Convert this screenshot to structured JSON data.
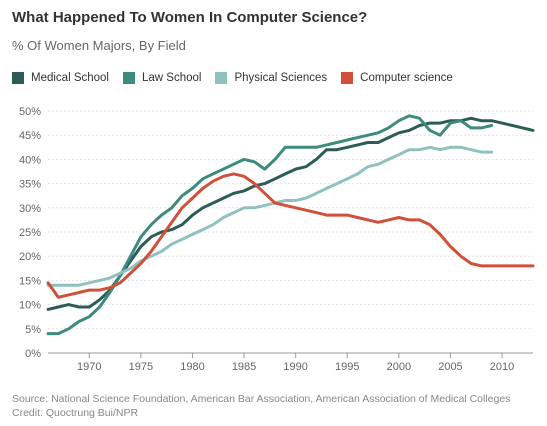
{
  "title": "What Happened To Women In Computer Science?",
  "subtitle": "% Of Women Majors, By Field",
  "footer": {
    "source": "Source: National Science Foundation, American Bar Association, American Association of Medical Colleges",
    "credit": "Credit: Quoctrung Bui/NPR"
  },
  "chart_data": {
    "type": "line",
    "title": "What Happened To Women In Computer Science?",
    "subtitle": "% Of Women Majors, By Field",
    "xlabel": "",
    "ylabel": "",
    "xlim": [
      1966,
      2013
    ],
    "ylim": [
      0,
      50
    ],
    "x_ticks": [
      1970,
      1975,
      1980,
      1985,
      1990,
      1995,
      2000,
      2005,
      2010
    ],
    "y_ticks": [
      "0%",
      "5%",
      "10%",
      "15%",
      "20%",
      "25%",
      "30%",
      "35%",
      "40%",
      "45%",
      "50%"
    ],
    "grid": true,
    "legend_position": "top-left",
    "series": [
      {
        "name": "Medical School",
        "color": "#2b5c55",
        "points": [
          [
            1966,
            9
          ],
          [
            1967,
            9.5
          ],
          [
            1968,
            10
          ],
          [
            1969,
            9.5
          ],
          [
            1970,
            9.5
          ],
          [
            1971,
            11
          ],
          [
            1972,
            13
          ],
          [
            1973,
            16
          ],
          [
            1974,
            19
          ],
          [
            1975,
            22
          ],
          [
            1976,
            24
          ],
          [
            1977,
            25
          ],
          [
            1978,
            25.5
          ],
          [
            1979,
            26.5
          ],
          [
            1980,
            28.5
          ],
          [
            1981,
            30
          ],
          [
            1982,
            31
          ],
          [
            1983,
            32
          ],
          [
            1984,
            33
          ],
          [
            1985,
            33.5
          ],
          [
            1986,
            34.5
          ],
          [
            1987,
            35
          ],
          [
            1988,
            36
          ],
          [
            1989,
            37
          ],
          [
            1990,
            38
          ],
          [
            1991,
            38.5
          ],
          [
            1992,
            40
          ],
          [
            1993,
            42
          ],
          [
            1994,
            42
          ],
          [
            1995,
            42.5
          ],
          [
            1996,
            43
          ],
          [
            1997,
            43.5
          ],
          [
            1998,
            43.5
          ],
          [
            1999,
            44.5
          ],
          [
            2000,
            45.5
          ],
          [
            2001,
            46
          ],
          [
            2002,
            47
          ],
          [
            2003,
            47.5
          ],
          [
            2004,
            47.5
          ],
          [
            2005,
            48
          ],
          [
            2006,
            48
          ],
          [
            2007,
            48.5
          ],
          [
            2008,
            48
          ],
          [
            2009,
            48
          ],
          [
            2010,
            47.5
          ],
          [
            2011,
            47
          ],
          [
            2012,
            46.5
          ],
          [
            2013,
            46
          ]
        ]
      },
      {
        "name": "Law School",
        "color": "#3d8a7f",
        "points": [
          [
            1966,
            4
          ],
          [
            1967,
            4
          ],
          [
            1968,
            5
          ],
          [
            1969,
            6.5
          ],
          [
            1970,
            7.5
          ],
          [
            1971,
            9.5
          ],
          [
            1972,
            12.5
          ],
          [
            1973,
            16
          ],
          [
            1974,
            20
          ],
          [
            1975,
            24
          ],
          [
            1976,
            26.5
          ],
          [
            1977,
            28.5
          ],
          [
            1978,
            30
          ],
          [
            1979,
            32.5
          ],
          [
            1980,
            34
          ],
          [
            1981,
            36
          ],
          [
            1982,
            37
          ],
          [
            1983,
            38
          ],
          [
            1984,
            39
          ],
          [
            1985,
            40
          ],
          [
            1986,
            39.5
          ],
          [
            1987,
            38
          ],
          [
            1988,
            40
          ],
          [
            1989,
            42.5
          ],
          [
            1990,
            42.5
          ],
          [
            1991,
            42.5
          ],
          [
            1992,
            42.5
          ],
          [
            1993,
            43
          ],
          [
            1994,
            43.5
          ],
          [
            1995,
            44
          ],
          [
            1996,
            44.5
          ],
          [
            1997,
            45
          ],
          [
            1998,
            45.5
          ],
          [
            1999,
            46.5
          ],
          [
            2000,
            48
          ],
          [
            2001,
            49
          ],
          [
            2002,
            48.5
          ],
          [
            2003,
            46
          ],
          [
            2004,
            45
          ],
          [
            2005,
            47.5
          ],
          [
            2006,
            48
          ],
          [
            2007,
            46.5
          ],
          [
            2008,
            46.5
          ],
          [
            2009,
            47
          ]
        ]
      },
      {
        "name": "Physical Sciences",
        "color": "#8fc2bf",
        "points": [
          [
            1966,
            14
          ],
          [
            1967,
            14
          ],
          [
            1968,
            14
          ],
          [
            1969,
            14
          ],
          [
            1970,
            14.5
          ],
          [
            1971,
            15
          ],
          [
            1972,
            15.5
          ],
          [
            1973,
            16.5
          ],
          [
            1974,
            17.5
          ],
          [
            1975,
            19
          ],
          [
            1976,
            20
          ],
          [
            1977,
            21
          ],
          [
            1978,
            22.5
          ],
          [
            1979,
            23.5
          ],
          [
            1980,
            24.5
          ],
          [
            1981,
            25.5
          ],
          [
            1982,
            26.5
          ],
          [
            1983,
            28
          ],
          [
            1984,
            29
          ],
          [
            1985,
            30
          ],
          [
            1986,
            30
          ],
          [
            1987,
            30.5
          ],
          [
            1988,
            31
          ],
          [
            1989,
            31.5
          ],
          [
            1990,
            31.5
          ],
          [
            1991,
            32
          ],
          [
            1992,
            33
          ],
          [
            1993,
            34
          ],
          [
            1994,
            35
          ],
          [
            1995,
            36
          ],
          [
            1996,
            37
          ],
          [
            1997,
            38.5
          ],
          [
            1998,
            39
          ],
          [
            1999,
            40
          ],
          [
            2000,
            41
          ],
          [
            2001,
            42
          ],
          [
            2002,
            42
          ],
          [
            2003,
            42.5
          ],
          [
            2004,
            42
          ],
          [
            2005,
            42.5
          ],
          [
            2006,
            42.5
          ],
          [
            2007,
            42
          ],
          [
            2008,
            41.5
          ],
          [
            2009,
            41.5
          ]
        ]
      },
      {
        "name": "Computer science",
        "color": "#d0503a",
        "points": [
          [
            1966,
            14.5
          ],
          [
            1967,
            11.5
          ],
          [
            1968,
            12
          ],
          [
            1969,
            12.5
          ],
          [
            1970,
            13
          ],
          [
            1971,
            13
          ],
          [
            1972,
            13.5
          ],
          [
            1973,
            14.5
          ],
          [
            1974,
            16.5
          ],
          [
            1975,
            18.5
          ],
          [
            1976,
            21
          ],
          [
            1977,
            24
          ],
          [
            1978,
            27
          ],
          [
            1979,
            30
          ],
          [
            1980,
            32
          ],
          [
            1981,
            34
          ],
          [
            1982,
            35.5
          ],
          [
            1983,
            36.5
          ],
          [
            1984,
            37
          ],
          [
            1985,
            36.5
          ],
          [
            1986,
            35
          ],
          [
            1987,
            33
          ],
          [
            1988,
            31
          ],
          [
            1989,
            30.5
          ],
          [
            1990,
            30
          ],
          [
            1991,
            29.5
          ],
          [
            1992,
            29
          ],
          [
            1993,
            28.5
          ],
          [
            1994,
            28.5
          ],
          [
            1995,
            28.5
          ],
          [
            1996,
            28
          ],
          [
            1997,
            27.5
          ],
          [
            1998,
            27
          ],
          [
            1999,
            27.5
          ],
          [
            2000,
            28
          ],
          [
            2001,
            27.5
          ],
          [
            2002,
            27.5
          ],
          [
            2003,
            26.5
          ],
          [
            2004,
            24.5
          ],
          [
            2005,
            22
          ],
          [
            2006,
            20
          ],
          [
            2007,
            18.5
          ],
          [
            2008,
            18
          ],
          [
            2009,
            18
          ],
          [
            2010,
            18
          ],
          [
            2011,
            18
          ],
          [
            2012,
            18
          ],
          [
            2013,
            18
          ]
        ]
      }
    ]
  }
}
